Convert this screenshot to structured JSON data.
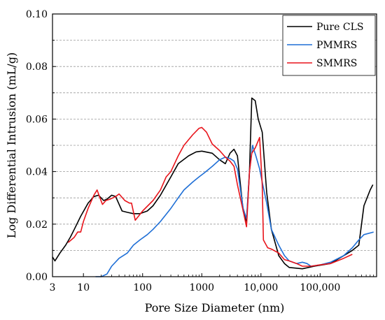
{
  "chart_data": {
    "type": "line",
    "title": "",
    "xlabel": "Pore Size Diameter (nm)",
    "ylabel": "Log Differential Intrusion (mL/g)",
    "xscale": "log",
    "xlim": [
      3,
      900000
    ],
    "ylim": [
      0,
      0.1
    ],
    "x_ticks": [
      {
        "value": 3,
        "label": "3"
      },
      {
        "value": 10,
        "label": "10"
      },
      {
        "value": 100,
        "label": "100"
      },
      {
        "value": 1000,
        "label": "1000"
      },
      {
        "value": 10000,
        "label": "10,000"
      },
      {
        "value": 100000,
        "label": "100,000"
      }
    ],
    "y_ticks": [
      {
        "value": 0,
        "label": "0.00"
      },
      {
        "value": 0.02,
        "label": "0.02"
      },
      {
        "value": 0.04,
        "label": "0.04"
      },
      {
        "value": 0.06,
        "label": "0.06"
      },
      {
        "value": 0.08,
        "label": "0.08"
      },
      {
        "value": 0.1,
        "label": "0.10"
      }
    ],
    "grid": "horizontal dashed",
    "legend": "top-right",
    "series": [
      {
        "name": "Pure CLS",
        "color": "#000000",
        "points": [
          [
            3,
            0.0075
          ],
          [
            3.3,
            0.006
          ],
          [
            4,
            0.009
          ],
          [
            5,
            0.012
          ],
          [
            6,
            0.015
          ],
          [
            7,
            0.018
          ],
          [
            9,
            0.023
          ],
          [
            12,
            0.028
          ],
          [
            15,
            0.0305
          ],
          [
            18,
            0.031
          ],
          [
            22,
            0.029
          ],
          [
            25,
            0.0295
          ],
          [
            30,
            0.031
          ],
          [
            35,
            0.0305
          ],
          [
            45,
            0.025
          ],
          [
            55,
            0.0245
          ],
          [
            70,
            0.024
          ],
          [
            90,
            0.024
          ],
          [
            120,
            0.025
          ],
          [
            150,
            0.027
          ],
          [
            200,
            0.031
          ],
          [
            300,
            0.038
          ],
          [
            400,
            0.043
          ],
          [
            600,
            0.046
          ],
          [
            800,
            0.0475
          ],
          [
            1000,
            0.0478
          ],
          [
            1500,
            0.047
          ],
          [
            2000,
            0.0445
          ],
          [
            2500,
            0.043
          ],
          [
            3000,
            0.047
          ],
          [
            3500,
            0.0485
          ],
          [
            4000,
            0.046
          ],
          [
            5000,
            0.025
          ],
          [
            5700,
            0.021
          ],
          [
            6400,
            0.04
          ],
          [
            7000,
            0.068
          ],
          [
            8000,
            0.067
          ],
          [
            9000,
            0.06
          ],
          [
            10500,
            0.055
          ],
          [
            12500,
            0.032
          ],
          [
            15000,
            0.018
          ],
          [
            20000,
            0.008
          ],
          [
            25000,
            0.005
          ],
          [
            30000,
            0.0035
          ],
          [
            50000,
            0.003
          ],
          [
            80000,
            0.004
          ],
          [
            150000,
            0.005
          ],
          [
            250000,
            0.008
          ],
          [
            350000,
            0.01
          ],
          [
            450000,
            0.012
          ],
          [
            550000,
            0.027
          ],
          [
            700000,
            0.033
          ],
          [
            780000,
            0.035
          ]
        ]
      },
      {
        "name": "PMMRS",
        "color": "#1f6fd6",
        "points": [
          [
            16,
            0
          ],
          [
            20,
            0
          ],
          [
            25,
            0.001
          ],
          [
            30,
            0.004
          ],
          [
            40,
            0.007
          ],
          [
            55,
            0.009
          ],
          [
            70,
            0.012
          ],
          [
            90,
            0.014
          ],
          [
            120,
            0.016
          ],
          [
            150,
            0.018
          ],
          [
            200,
            0.021
          ],
          [
            300,
            0.026
          ],
          [
            400,
            0.03
          ],
          [
            500,
            0.033
          ],
          [
            700,
            0.036
          ],
          [
            900,
            0.038
          ],
          [
            1100,
            0.0395
          ],
          [
            1500,
            0.042
          ],
          [
            2000,
            0.0445
          ],
          [
            2500,
            0.0455
          ],
          [
            3000,
            0.045
          ],
          [
            3500,
            0.044
          ],
          [
            4000,
            0.041
          ],
          [
            5000,
            0.026
          ],
          [
            5700,
            0.022
          ],
          [
            6400,
            0.04
          ],
          [
            7200,
            0.05
          ],
          [
            8200,
            0.046
          ],
          [
            9500,
            0.041
          ],
          [
            10500,
            0.036
          ],
          [
            12500,
            0.028
          ],
          [
            15000,
            0.018
          ],
          [
            20000,
            0.012
          ],
          [
            25000,
            0.008
          ],
          [
            30000,
            0.006
          ],
          [
            40000,
            0.005
          ],
          [
            50000,
            0.0055
          ],
          [
            60000,
            0.005
          ],
          [
            70000,
            0.004
          ],
          [
            100000,
            0.0045
          ],
          [
            150000,
            0.0055
          ],
          [
            250000,
            0.008
          ],
          [
            350000,
            0.011
          ],
          [
            450000,
            0.014
          ],
          [
            550000,
            0.016
          ],
          [
            800000,
            0.017
          ]
        ]
      },
      {
        "name": "SMMRS",
        "color": "#e8141b",
        "points": [
          [
            5.5,
            0.013
          ],
          [
            7,
            0.015
          ],
          [
            8,
            0.017
          ],
          [
            9,
            0.017
          ],
          [
            10,
            0.021
          ],
          [
            12,
            0.026
          ],
          [
            15,
            0.031
          ],
          [
            17,
            0.033
          ],
          [
            19,
            0.03
          ],
          [
            21,
            0.0275
          ],
          [
            24,
            0.029
          ],
          [
            28,
            0.0295
          ],
          [
            35,
            0.0305
          ],
          [
            40,
            0.0315
          ],
          [
            50,
            0.029
          ],
          [
            60,
            0.028
          ],
          [
            65,
            0.028
          ],
          [
            75,
            0.0215
          ],
          [
            85,
            0.023
          ],
          [
            100,
            0.025
          ],
          [
            150,
            0.029
          ],
          [
            200,
            0.033
          ],
          [
            250,
            0.038
          ],
          [
            300,
            0.04
          ],
          [
            400,
            0.046
          ],
          [
            500,
            0.05
          ],
          [
            700,
            0.054
          ],
          [
            900,
            0.0565
          ],
          [
            1000,
            0.0568
          ],
          [
            1200,
            0.055
          ],
          [
            1500,
            0.0505
          ],
          [
            2000,
            0.048
          ],
          [
            2500,
            0.0455
          ],
          [
            3000,
            0.044
          ],
          [
            3500,
            0.042
          ],
          [
            4000,
            0.035
          ],
          [
            5000,
            0.025
          ],
          [
            5700,
            0.019
          ],
          [
            6400,
            0.04
          ],
          [
            7000,
            0.047
          ],
          [
            8000,
            0.049
          ],
          [
            9500,
            0.053
          ],
          [
            10500,
            0.035
          ],
          [
            11000,
            0.014
          ],
          [
            13000,
            0.011
          ],
          [
            15000,
            0.0105
          ],
          [
            20000,
            0.009
          ],
          [
            25000,
            0.0065
          ],
          [
            30000,
            0.006
          ],
          [
            40000,
            0.005
          ],
          [
            50000,
            0.004
          ],
          [
            70000,
            0.004
          ],
          [
            100000,
            0.0045
          ],
          [
            150000,
            0.005
          ],
          [
            250000,
            0.007
          ],
          [
            350000,
            0.0085
          ]
        ]
      }
    ]
  }
}
